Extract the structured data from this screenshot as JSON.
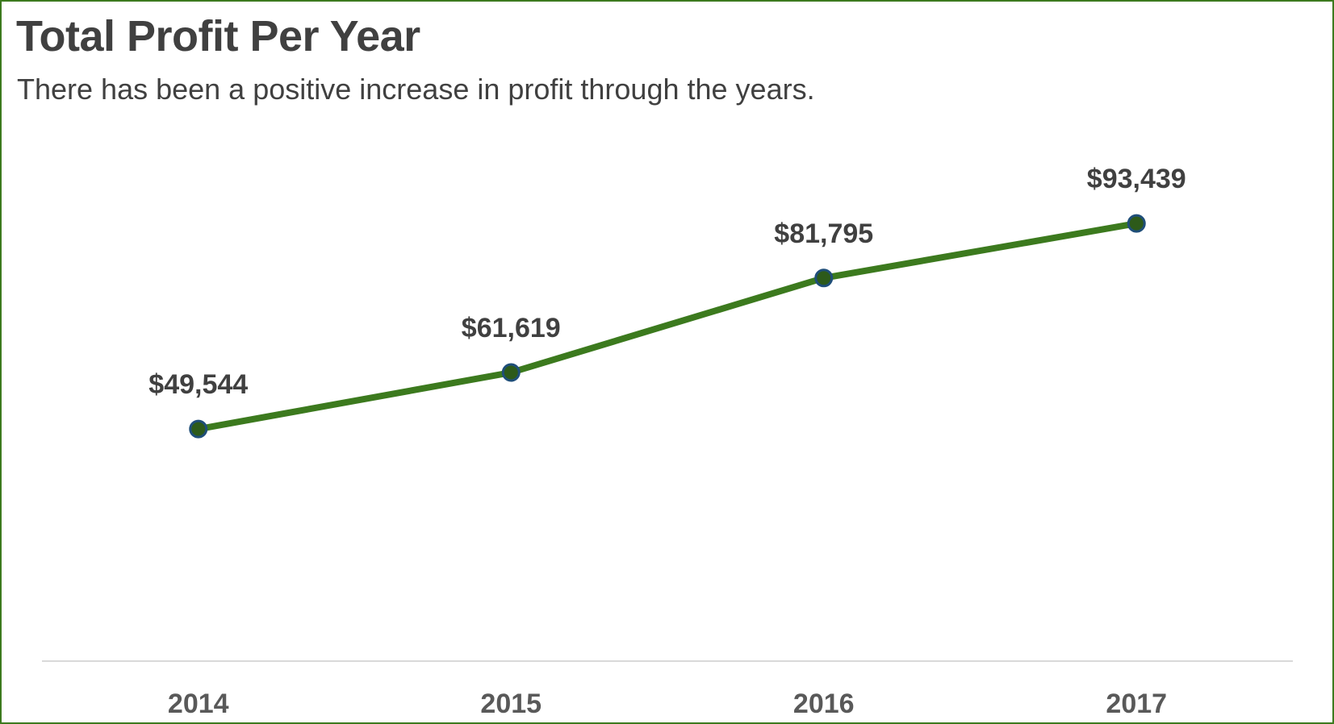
{
  "chart_data": {
    "type": "line",
    "title": "Total Profit Per Year",
    "subtitle": "There has been a positive increase in profit through the years.",
    "categories": [
      "2014",
      "2015",
      "2016",
      "2017"
    ],
    "values": [
      49544,
      61619,
      81795,
      93439
    ],
    "data_labels": [
      "$49,544",
      "$61,619",
      "$81,795",
      "$93,439"
    ],
    "ylim": [
      0,
      105000
    ],
    "grid": false,
    "legend": "none",
    "colors": {
      "line": "#3c7a1e",
      "marker_fill": "#2d5a1a",
      "marker_edge": "#1f4e79",
      "border": "#3c7a1e",
      "axis": "#d9d9d9",
      "text": "#404040"
    }
  }
}
